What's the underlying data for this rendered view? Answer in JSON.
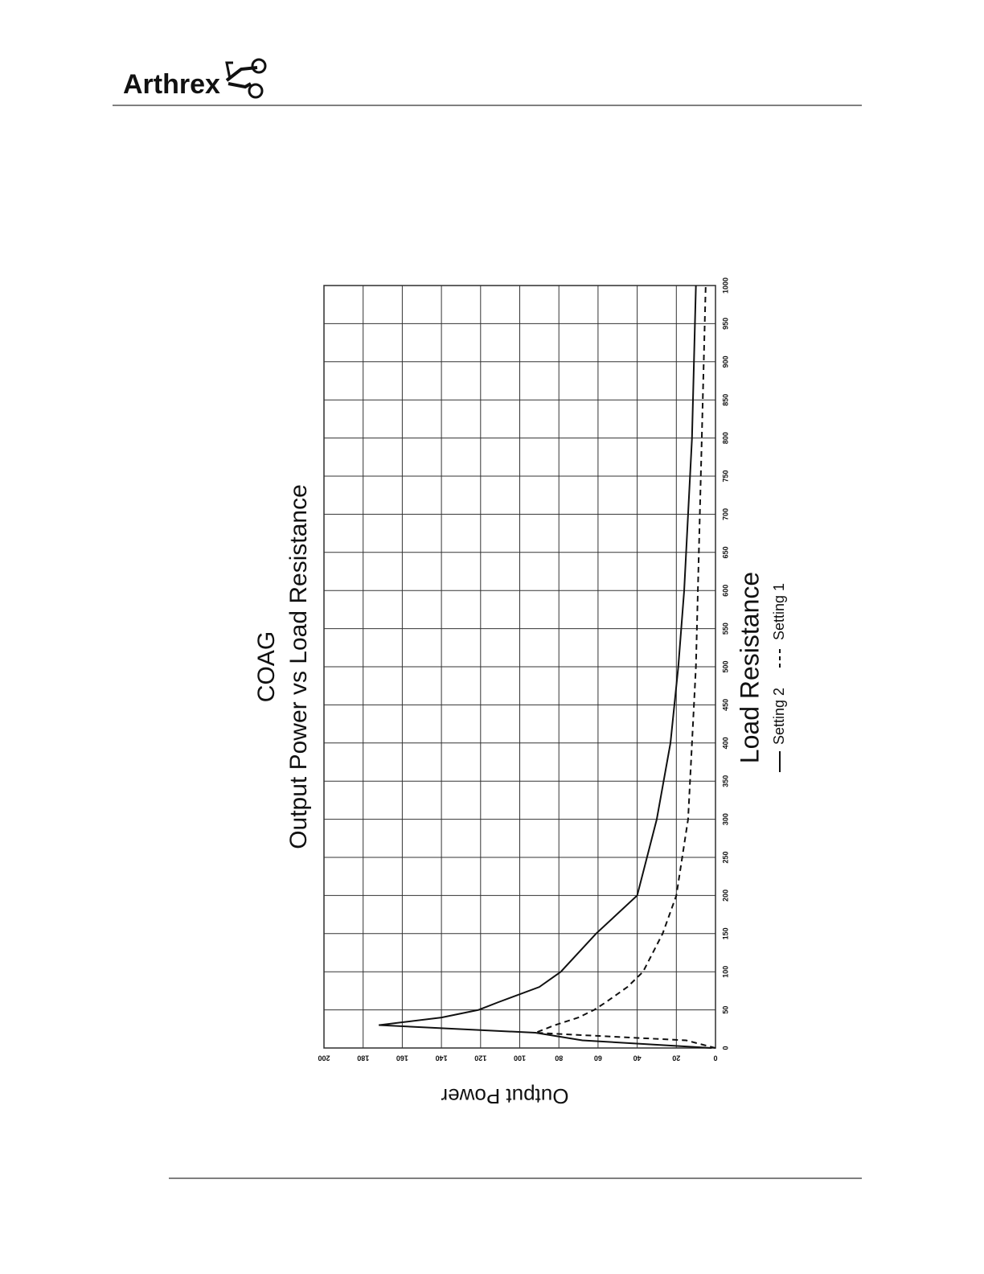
{
  "header": {
    "logo": "Arthrex"
  },
  "chart_data": {
    "type": "line",
    "title": "COAG",
    "subtitle": "Output Power vs Load Resistance",
    "xlabel": "Load Resistance",
    "ylabel": "Output Power",
    "x": [
      0,
      10,
      20,
      30,
      40,
      50,
      60,
      80,
      100,
      150,
      200,
      300,
      400,
      500,
      600,
      700,
      800,
      900,
      1000
    ],
    "series": [
      {
        "name": "Setting 2",
        "color": "#111111",
        "style": "solid",
        "values": [
          2,
          68,
          92,
          172,
          140,
          121,
          111,
          90,
          79,
          61,
          40,
          30,
          23,
          19,
          16,
          14,
          12,
          11,
          10
        ]
      },
      {
        "name": "Setting 1",
        "color": "#111111",
        "style": "dashed",
        "values": [
          0,
          15,
          92,
          82,
          70,
          62,
          56,
          45,
          37,
          27,
          20,
          14,
          12,
          10,
          9,
          8,
          7,
          6,
          5
        ]
      }
    ],
    "xlim": [
      0,
      1000
    ],
    "ylim": [
      0,
      200
    ],
    "xticks": [
      0,
      50,
      100,
      150,
      200,
      250,
      300,
      350,
      400,
      450,
      500,
      550,
      600,
      650,
      700,
      750,
      800,
      850,
      900,
      950,
      1000
    ],
    "yticks": [
      0,
      20,
      40,
      60,
      80,
      100,
      120,
      140,
      160,
      180,
      200
    ],
    "grid": true
  }
}
